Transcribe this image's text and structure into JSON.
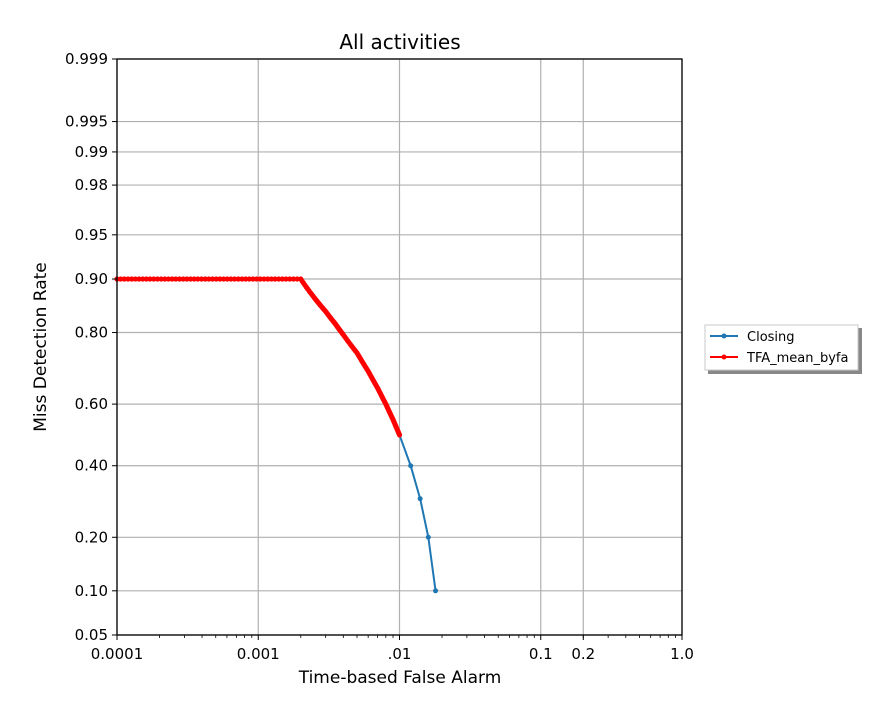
{
  "chart_data": {
    "type": "line",
    "title": "All activities",
    "xlabel": "Time-based False Alarm",
    "ylabel": "Miss Detection Rate",
    "x_scale": "log",
    "y_scale": "normal-deviate",
    "xlim": [
      0.0001,
      1.0
    ],
    "ylim": [
      0.05,
      0.999
    ],
    "grid": true,
    "legend_position": "outside right",
    "x_ticks": [
      {
        "value": 0.0001,
        "label": "0.0001"
      },
      {
        "value": 0.001,
        "label": "0.001"
      },
      {
        "value": 0.01,
        "label": ".01"
      },
      {
        "value": 0.1,
        "label": "0.1"
      },
      {
        "value": 0.2,
        "label": "0.2"
      },
      {
        "value": 1.0,
        "label": "1.0"
      }
    ],
    "y_ticks": [
      {
        "value": 0.05,
        "label": "0.05"
      },
      {
        "value": 0.1,
        "label": "0.10"
      },
      {
        "value": 0.2,
        "label": "0.20"
      },
      {
        "value": 0.4,
        "label": "0.40"
      },
      {
        "value": 0.6,
        "label": "0.60"
      },
      {
        "value": 0.8,
        "label": "0.80"
      },
      {
        "value": 0.9,
        "label": "0.90"
      },
      {
        "value": 0.95,
        "label": "0.95"
      },
      {
        "value": 0.98,
        "label": "0.98"
      },
      {
        "value": 0.99,
        "label": "0.99"
      },
      {
        "value": 0.995,
        "label": "0.995"
      },
      {
        "value": 0.999,
        "label": "0.999"
      }
    ],
    "series": [
      {
        "name": "Closing",
        "color": "#1f77b4",
        "x": [
          0.01,
          0.012,
          0.014,
          0.016,
          0.018
        ],
        "y": [
          0.5,
          0.4,
          0.3,
          0.2,
          0.1
        ]
      },
      {
        "name": "TFA_mean_byfa",
        "color": "#ff0000",
        "x": [
          0.0001,
          0.002,
          0.0025,
          0.003,
          0.0035,
          0.004,
          0.005,
          0.006,
          0.007,
          0.008,
          0.009,
          0.01
        ],
        "y": [
          0.9,
          0.9,
          0.87,
          0.845,
          0.82,
          0.795,
          0.75,
          0.7,
          0.65,
          0.6,
          0.55,
          0.5
        ]
      }
    ]
  }
}
